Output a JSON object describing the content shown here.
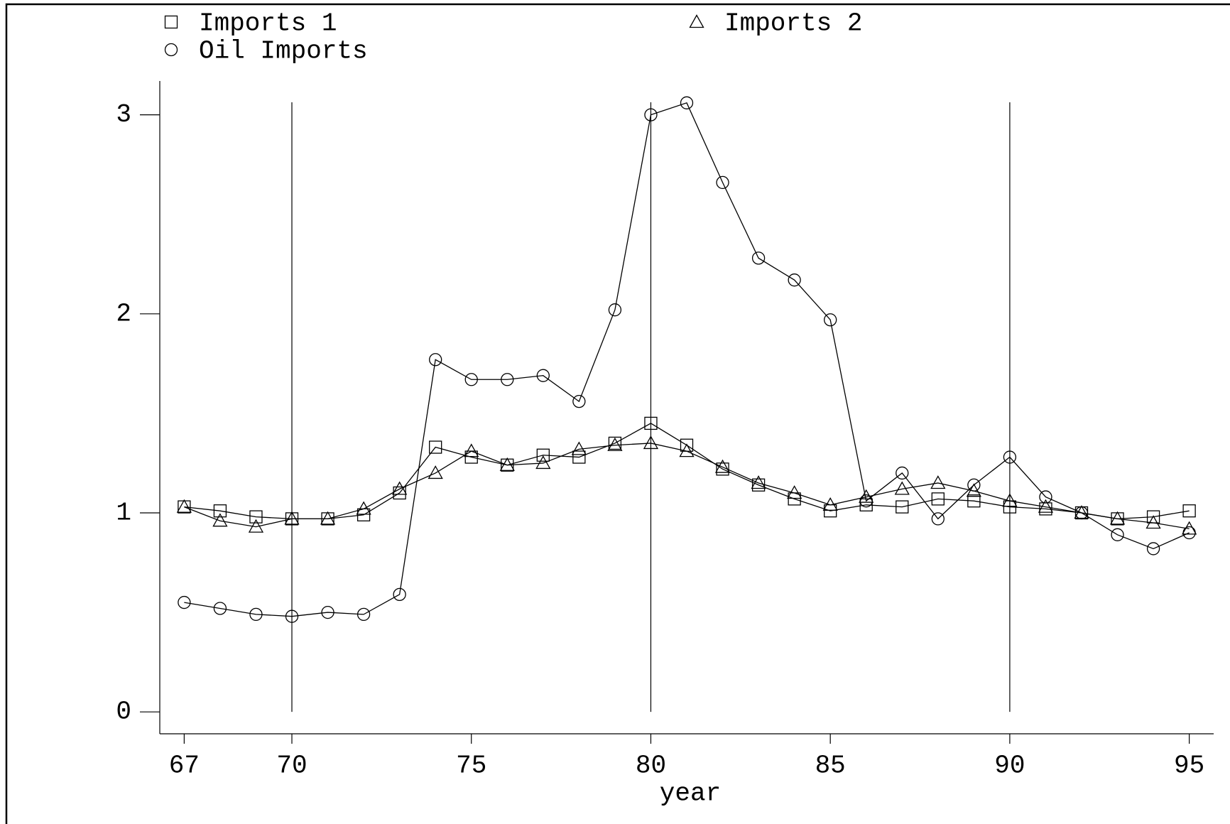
{
  "chart_data": {
    "type": "line",
    "x_label": "year",
    "x": [
      67,
      68,
      69,
      70,
      71,
      72,
      73,
      74,
      75,
      76,
      77,
      78,
      79,
      80,
      81,
      82,
      83,
      84,
      85,
      86,
      87,
      88,
      89,
      90,
      91,
      92,
      93,
      94,
      95
    ],
    "series": [
      {
        "name": "Imports 1",
        "marker": "square",
        "color": "#000000",
        "values": [
          1.03,
          1.01,
          0.98,
          0.97,
          0.97,
          0.99,
          1.1,
          1.33,
          1.28,
          1.24,
          1.29,
          1.28,
          1.35,
          1.45,
          1.34,
          1.22,
          1.14,
          1.07,
          1.01,
          1.04,
          1.03,
          1.07,
          1.06,
          1.03,
          1.02,
          1.0,
          0.97,
          0.98,
          1.01
        ]
      },
      {
        "name": "Imports 2",
        "marker": "triangle",
        "color": "#000000",
        "values": [
          1.03,
          0.96,
          0.93,
          0.97,
          0.97,
          1.02,
          1.12,
          1.2,
          1.31,
          1.24,
          1.25,
          1.32,
          1.34,
          1.35,
          1.31,
          1.23,
          1.15,
          1.1,
          1.04,
          1.08,
          1.12,
          1.15,
          1.11,
          1.06,
          1.03,
          1.0,
          0.97,
          0.95,
          0.92
        ]
      },
      {
        "name": "Oil Imports",
        "marker": "circle",
        "color": "#000000",
        "values": [
          0.55,
          0.52,
          0.49,
          0.48,
          0.5,
          0.49,
          0.59,
          1.77,
          1.67,
          1.67,
          1.69,
          1.56,
          2.02,
          3.0,
          3.06,
          2.66,
          2.28,
          2.17,
          1.97,
          1.06,
          1.2,
          0.97,
          1.14,
          1.28,
          1.08,
          1.0,
          0.89,
          0.82,
          0.9
        ]
      }
    ],
    "xlim": [
      66.32,
      95.68
    ],
    "ylim": [
      -0.11,
      3.17
    ],
    "xticks": [
      67,
      70,
      75,
      80,
      85,
      90,
      95
    ],
    "yticks": [
      0,
      1,
      2,
      3
    ],
    "xlines": [
      70,
      80,
      90
    ]
  }
}
